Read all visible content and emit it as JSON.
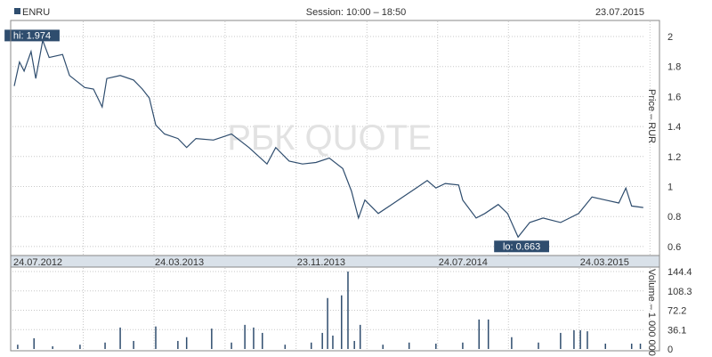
{
  "header": {
    "ticker": "ENRU",
    "session": "Session: 10:00 – 18:50",
    "date": "23.07.2015"
  },
  "watermark": "РБК QUOTE",
  "colors": {
    "line": "#2f4d6e",
    "label_bg": "#2f4d6e",
    "date_strip": "#d9e1e9",
    "grid": "#c8c8c8"
  },
  "chart_data": [
    {
      "type": "line",
      "ylabel": "Price – RUR",
      "ylim": [
        0.6,
        2.0
      ],
      "yticks": [
        "0.6",
        "0.8",
        "1",
        "1.2",
        "1.4",
        "1.6",
        "1.8",
        "2"
      ],
      "xlim": [
        "24.07.2012",
        "23.07.2015"
      ],
      "xticks": [
        "24.07.2012",
        "24.03.2013",
        "23.11.2013",
        "24.07.2014",
        "24.03.2015"
      ],
      "grid": true,
      "annotations": [
        {
          "text": "hi: 1.974",
          "date": "14.09.2012",
          "value": 1.974
        },
        {
          "text": "lo: 0.663",
          "date": "09.12.2014",
          "value": 0.663
        }
      ],
      "points": [
        [
          "27.07.2012",
          1.67
        ],
        [
          "05.08.2012",
          1.83
        ],
        [
          "13.08.2012",
          1.77
        ],
        [
          "25.08.2012",
          1.9
        ],
        [
          "02.09.2012",
          1.72
        ],
        [
          "14.09.2012",
          1.974
        ],
        [
          "25.09.2012",
          1.86
        ],
        [
          "18.10.2012",
          1.88
        ],
        [
          "30.10.2012",
          1.74
        ],
        [
          "25.11.2012",
          1.66
        ],
        [
          "10.12.2012",
          1.65
        ],
        [
          "25.12.2012",
          1.53
        ],
        [
          "02.01.2013",
          1.72
        ],
        [
          "25.01.2013",
          1.74
        ],
        [
          "17.02.2013",
          1.71
        ],
        [
          "04.03.2013",
          1.65
        ],
        [
          "16.03.2013",
          1.59
        ],
        [
          "27.03.2013",
          1.41
        ],
        [
          "11.04.2013",
          1.35
        ],
        [
          "04.05.2013",
          1.32
        ],
        [
          "19.05.2013",
          1.26
        ],
        [
          "04.06.2013",
          1.32
        ],
        [
          "04.07.2013",
          1.31
        ],
        [
          "04.08.2013",
          1.35
        ],
        [
          "03.09.2013",
          1.26
        ],
        [
          "04.10.2013",
          1.15
        ],
        [
          "19.10.2013",
          1.26
        ],
        [
          "11.11.2013",
          1.17
        ],
        [
          "04.12.2013",
          1.15
        ],
        [
          "27.12.2013",
          1.16
        ],
        [
          "19.01.2014",
          1.19
        ],
        [
          "11.02.2014",
          1.12
        ],
        [
          "26.02.2014",
          0.97
        ],
        [
          "10.03.2014",
          0.79
        ],
        [
          "21.03.2014",
          0.91
        ],
        [
          "13.04.2014",
          0.82
        ],
        [
          "06.05.2014",
          0.88
        ],
        [
          "29.05.2014",
          0.94
        ],
        [
          "21.06.2014",
          1.0
        ],
        [
          "06.07.2014",
          1.04
        ],
        [
          "21.07.2014",
          0.99
        ],
        [
          "06.08.2014",
          1.02
        ],
        [
          "29.08.2014",
          1.01
        ],
        [
          "05.09.2014",
          0.91
        ],
        [
          "28.09.2014",
          0.79
        ],
        [
          "13.10.2014",
          0.82
        ],
        [
          "05.11.2014",
          0.88
        ],
        [
          "21.11.2014",
          0.82
        ],
        [
          "09.12.2014",
          0.663
        ],
        [
          "29.12.2014",
          0.76
        ],
        [
          "21.01.2015",
          0.79
        ],
        [
          "20.02.2015",
          0.76
        ],
        [
          "23.03.2015",
          0.82
        ],
        [
          "15.04.2015",
          0.93
        ],
        [
          "08.05.2015",
          0.91
        ],
        [
          "31.05.2015",
          0.89
        ],
        [
          "12.06.2015",
          0.99
        ],
        [
          "22.06.2015",
          0.87
        ],
        [
          "12.07.2015",
          0.86
        ]
      ]
    },
    {
      "type": "bar",
      "ylabel": "Volume – 1 000 000",
      "ylim": [
        0,
        144.4
      ],
      "yticks": [
        "0",
        "36.1",
        "72.2",
        "108.3",
        "144.4"
      ],
      "grid": true,
      "points": [
        [
          "02.08.2012",
          8
        ],
        [
          "30.08.2012",
          20
        ],
        [
          "01.10.2012",
          5
        ],
        [
          "17.11.2012",
          8
        ],
        [
          "30.12.2012",
          12
        ],
        [
          "25.01.2013",
          40
        ],
        [
          "17.02.2013",
          15
        ],
        [
          "27.03.2013",
          42
        ],
        [
          "04.05.2013",
          15
        ],
        [
          "19.05.2013",
          22
        ],
        [
          "01.07.2013",
          38
        ],
        [
          "04.08.2013",
          12
        ],
        [
          "27.08.2013",
          45
        ],
        [
          "11.09.2013",
          40
        ],
        [
          "26.09.2013",
          30
        ],
        [
          "04.11.2013",
          8
        ],
        [
          "19.12.2013",
          12
        ],
        [
          "07.01.2014",
          30
        ],
        [
          "16.01.2014",
          95
        ],
        [
          "25.01.2014",
          25
        ],
        [
          "09.02.2014",
          100
        ],
        [
          "20.02.2014",
          144.4
        ],
        [
          "03.03.2014",
          15
        ],
        [
          "13.03.2014",
          45
        ],
        [
          "21.04.2014",
          8
        ],
        [
          "05.06.2014",
          12
        ],
        [
          "21.07.2014",
          10
        ],
        [
          "05.09.2014",
          12
        ],
        [
          "03.10.2014",
          55
        ],
        [
          "19.10.2014",
          55
        ],
        [
          "28.11.2014",
          22
        ],
        [
          "13.01.2015",
          12
        ],
        [
          "20.02.2015",
          30
        ],
        [
          "15.03.2015",
          35
        ],
        [
          "26.03.2015",
          35
        ],
        [
          "07.04.2015",
          33
        ],
        [
          "08.05.2015",
          10
        ],
        [
          "22.06.2015",
          10
        ],
        [
          "07.07.2015",
          10
        ]
      ]
    }
  ]
}
